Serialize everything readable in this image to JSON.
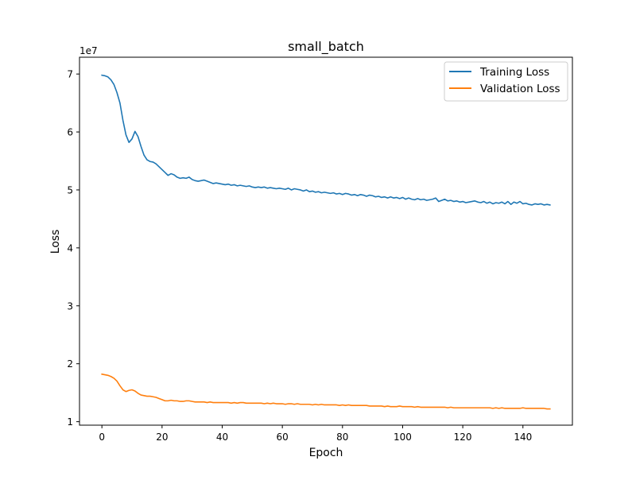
{
  "chart_data": {
    "type": "line",
    "title": "small_batch",
    "xlabel": "Epoch",
    "ylabel": "Loss",
    "y_multiplier_label": "1e7",
    "x_ticks": [
      0,
      20,
      40,
      60,
      80,
      100,
      120,
      140
    ],
    "y_ticks": [
      1,
      2,
      3,
      4,
      5,
      6,
      7
    ],
    "xlim": [
      -7.45,
      156.45
    ],
    "ylim": [
      0.94,
      7.29
    ],
    "grid": false,
    "legend": "top-right",
    "colors": {
      "Training Loss": "#1f77b4",
      "Validation Loss": "#ff7f0e"
    },
    "series": [
      {
        "name": "Training Loss",
        "values": [
          6.98,
          6.97,
          6.95,
          6.9,
          6.82,
          6.68,
          6.5,
          6.2,
          5.95,
          5.82,
          5.88,
          6.01,
          5.92,
          5.75,
          5.6,
          5.52,
          5.49,
          5.48,
          5.45,
          5.4,
          5.35,
          5.3,
          5.25,
          5.28,
          5.26,
          5.22,
          5.2,
          5.21,
          5.2,
          5.22,
          5.18,
          5.16,
          5.15,
          5.16,
          5.17,
          5.15,
          5.13,
          5.11,
          5.12,
          5.11,
          5.1,
          5.09,
          5.1,
          5.08,
          5.09,
          5.07,
          5.08,
          5.07,
          5.06,
          5.07,
          5.05,
          5.04,
          5.05,
          5.04,
          5.05,
          5.03,
          5.04,
          5.03,
          5.02,
          5.03,
          5.02,
          5.01,
          5.03,
          5.0,
          5.02,
          5.01,
          5.0,
          4.98,
          5.0,
          4.97,
          4.98,
          4.96,
          4.97,
          4.95,
          4.96,
          4.95,
          4.94,
          4.95,
          4.93,
          4.94,
          4.92,
          4.94,
          4.93,
          4.91,
          4.92,
          4.9,
          4.92,
          4.91,
          4.89,
          4.91,
          4.9,
          4.88,
          4.89,
          4.87,
          4.88,
          4.86,
          4.88,
          4.86,
          4.87,
          4.85,
          4.87,
          4.84,
          4.86,
          4.84,
          4.83,
          4.85,
          4.83,
          4.84,
          4.82,
          4.83,
          4.84,
          4.86,
          4.8,
          4.82,
          4.84,
          4.81,
          4.82,
          4.8,
          4.81,
          4.79,
          4.8,
          4.78,
          4.79,
          4.8,
          4.81,
          4.79,
          4.78,
          4.8,
          4.77,
          4.79,
          4.76,
          4.78,
          4.77,
          4.79,
          4.76,
          4.8,
          4.75,
          4.79,
          4.77,
          4.8,
          4.76,
          4.77,
          4.75,
          4.74,
          4.76,
          4.75,
          4.76,
          4.74,
          4.75,
          4.74
        ]
      },
      {
        "name": "Validation Loss",
        "values": [
          1.82,
          1.81,
          1.8,
          1.78,
          1.75,
          1.7,
          1.62,
          1.55,
          1.52,
          1.54,
          1.55,
          1.53,
          1.49,
          1.46,
          1.45,
          1.44,
          1.44,
          1.43,
          1.42,
          1.4,
          1.38,
          1.36,
          1.36,
          1.37,
          1.36,
          1.36,
          1.35,
          1.35,
          1.36,
          1.36,
          1.35,
          1.34,
          1.34,
          1.34,
          1.34,
          1.33,
          1.34,
          1.33,
          1.33,
          1.33,
          1.33,
          1.33,
          1.33,
          1.32,
          1.33,
          1.32,
          1.33,
          1.33,
          1.32,
          1.32,
          1.32,
          1.32,
          1.32,
          1.32,
          1.31,
          1.32,
          1.31,
          1.32,
          1.31,
          1.31,
          1.31,
          1.3,
          1.31,
          1.31,
          1.3,
          1.31,
          1.3,
          1.3,
          1.3,
          1.3,
          1.29,
          1.3,
          1.29,
          1.3,
          1.29,
          1.29,
          1.29,
          1.29,
          1.29,
          1.28,
          1.29,
          1.28,
          1.29,
          1.28,
          1.28,
          1.28,
          1.28,
          1.28,
          1.28,
          1.27,
          1.27,
          1.27,
          1.27,
          1.27,
          1.26,
          1.27,
          1.26,
          1.26,
          1.26,
          1.27,
          1.26,
          1.26,
          1.26,
          1.26,
          1.25,
          1.26,
          1.25,
          1.25,
          1.25,
          1.25,
          1.25,
          1.25,
          1.25,
          1.25,
          1.25,
          1.24,
          1.25,
          1.24,
          1.24,
          1.24,
          1.24,
          1.24,
          1.24,
          1.24,
          1.24,
          1.24,
          1.24,
          1.24,
          1.24,
          1.24,
          1.23,
          1.24,
          1.23,
          1.24,
          1.23,
          1.23,
          1.23,
          1.23,
          1.23,
          1.23,
          1.24,
          1.23,
          1.23,
          1.23,
          1.23,
          1.23,
          1.23,
          1.23,
          1.22,
          1.22
        ]
      }
    ]
  }
}
